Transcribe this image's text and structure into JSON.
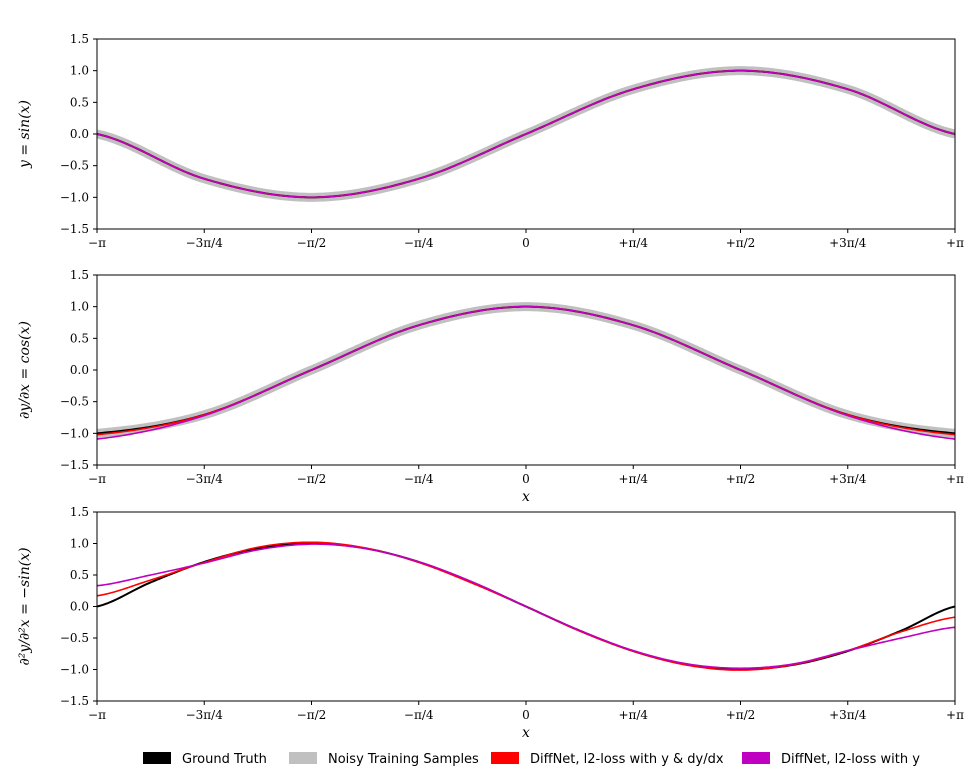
{
  "chart_data": [
    {
      "type": "line",
      "ylabel": "y = sin(x)",
      "xlabel": "",
      "xlim": [
        -3.14159,
        3.14159
      ],
      "ylim": [
        -1.5,
        1.5
      ],
      "xticks": [
        -3.14159,
        -2.35619,
        -1.5708,
        -0.7854,
        0,
        0.7854,
        1.5708,
        2.35619,
        3.14159
      ],
      "xtick_labels": [
        "−π",
        "−3π/4",
        "−π/2",
        "−π/4",
        "0",
        "+π/4",
        "+π/2",
        "+3π/4",
        "+π"
      ],
      "yticks": [
        -1.5,
        -1.0,
        -0.5,
        0.0,
        0.5,
        1.0,
        1.5
      ],
      "ytick_labels": [
        "−1.5",
        "−1.0",
        "−0.5",
        "0.0",
        "0.5",
        "1.0",
        "1.5"
      ],
      "x": [
        -3.14159,
        -2.35619,
        -1.5708,
        -0.7854,
        0,
        0.7854,
        1.5708,
        2.35619,
        3.14159
      ],
      "series": [
        {
          "name": "Noisy Training Samples",
          "values": [
            0.0,
            -0.707,
            -1.0,
            -0.707,
            0.0,
            0.707,
            1.0,
            0.707,
            0.0
          ]
        },
        {
          "name": "Ground Truth",
          "values": [
            0.0,
            -0.707,
            -1.0,
            -0.707,
            0.0,
            0.707,
            1.0,
            0.707,
            0.0
          ]
        },
        {
          "name": "DiffNet, l2-loss with y & dy/dx",
          "values": [
            0.0,
            -0.707,
            -1.0,
            -0.707,
            0.0,
            0.707,
            1.0,
            0.707,
            0.0
          ]
        },
        {
          "name": "DiffNet, l2-loss with y",
          "values": [
            0.0,
            -0.707,
            -1.0,
            -0.707,
            0.0,
            0.707,
            1.0,
            0.707,
            0.0
          ]
        }
      ]
    },
    {
      "type": "line",
      "ylabel": "∂y/∂x = cos(x)",
      "xlabel": "x",
      "xlim": [
        -3.14159,
        3.14159
      ],
      "ylim": [
        -1.5,
        1.5
      ],
      "xticks": [
        -3.14159,
        -2.35619,
        -1.5708,
        -0.7854,
        0,
        0.7854,
        1.5708,
        2.35619,
        3.14159
      ],
      "xtick_labels": [
        "−π",
        "−3π/4",
        "−π/2",
        "−π/4",
        "0",
        "+π/4",
        "+π/2",
        "+3π/4",
        "+π"
      ],
      "yticks": [
        -1.5,
        -1.0,
        -0.5,
        0.0,
        0.5,
        1.0,
        1.5
      ],
      "ytick_labels": [
        "−1.5",
        "−1.0",
        "−0.5",
        "0.0",
        "0.5",
        "1.0",
        "1.5"
      ],
      "x": [
        -3.14159,
        -2.35619,
        -1.5708,
        -0.7854,
        0,
        0.7854,
        1.5708,
        2.35619,
        3.14159
      ],
      "series": [
        {
          "name": "Noisy Training Samples",
          "values": [
            -1.0,
            -0.707,
            0.0,
            0.707,
            1.0,
            0.707,
            0.0,
            -0.707,
            -1.0
          ]
        },
        {
          "name": "Ground Truth",
          "values": [
            -1.0,
            -0.707,
            0.0,
            0.707,
            1.0,
            0.707,
            0.0,
            -0.707,
            -1.0
          ]
        },
        {
          "name": "DiffNet, l2-loss with y & dy/dx",
          "values": [
            -1.02,
            -0.707,
            0.0,
            0.707,
            1.0,
            0.707,
            0.0,
            -0.707,
            -1.02
          ]
        },
        {
          "name": "DiffNet, l2-loss with y",
          "values": [
            -1.09,
            -0.72,
            0.0,
            0.707,
            1.0,
            0.707,
            0.0,
            -0.72,
            -1.09
          ]
        }
      ]
    },
    {
      "type": "line",
      "ylabel": "∂²y/∂²x = −sin(x)",
      "xlabel": "x",
      "xlim": [
        -3.14159,
        3.14159
      ],
      "ylim": [
        -1.5,
        1.5
      ],
      "xticks": [
        -3.14159,
        -2.35619,
        -1.5708,
        -0.7854,
        0,
        0.7854,
        1.5708,
        2.35619,
        3.14159
      ],
      "xtick_labels": [
        "−π",
        "−3π/4",
        "−π/2",
        "−π/4",
        "0",
        "+π/4",
        "+π/2",
        "+3π/4",
        "+π"
      ],
      "yticks": [
        -1.5,
        -1.0,
        -0.5,
        0.0,
        0.5,
        1.0,
        1.5
      ],
      "ytick_labels": [
        "−1.5",
        "−1.0",
        "−0.5",
        "0.0",
        "0.5",
        "1.0",
        "1.5"
      ],
      "x": [
        -3.14159,
        -2.74889,
        -2.35619,
        -1.9635,
        -1.5708,
        -1.1781,
        -0.7854,
        -0.3927,
        0,
        0.3927,
        0.7854,
        1.1781,
        1.5708,
        1.9635,
        2.35619,
        2.74889,
        3.14159
      ],
      "series": [
        {
          "name": "Ground Truth",
          "values": [
            0.0,
            0.383,
            0.707,
            0.924,
            1.0,
            0.924,
            0.707,
            0.383,
            0.0,
            -0.383,
            -0.707,
            -0.924,
            -1.0,
            -0.924,
            -0.707,
            -0.383,
            0.0
          ]
        },
        {
          "name": "DiffNet, l2-loss with y & dy/dx",
          "values": [
            0.17,
            0.42,
            0.7,
            0.94,
            1.02,
            0.93,
            0.7,
            0.37,
            0.0,
            -0.39,
            -0.71,
            -0.93,
            -1.01,
            -0.92,
            -0.7,
            -0.4,
            -0.17
          ]
        },
        {
          "name": "DiffNet, l2-loss with y",
          "values": [
            0.33,
            0.5,
            0.69,
            0.9,
            0.99,
            0.92,
            0.71,
            0.39,
            0.0,
            -0.38,
            -0.7,
            -0.91,
            -0.98,
            -0.91,
            -0.7,
            -0.5,
            -0.33
          ]
        }
      ]
    }
  ],
  "legend": {
    "position": "bottom",
    "items": [
      {
        "label": "Ground Truth",
        "color": "#000000"
      },
      {
        "label": "Noisy Training Samples",
        "color": "#c0c0c0"
      },
      {
        "label": "DiffNet, l2-loss with y & dy/dx",
        "color": "#ff0000"
      },
      {
        "label": "DiffNet, l2-loss with y",
        "color": "#c000c0"
      }
    ]
  },
  "colors": {
    "ground_truth": "#000000",
    "noisy": "#c0c0c0",
    "diffnet_y_dydx": "#ff0000",
    "diffnet_y": "#c000c0"
  }
}
